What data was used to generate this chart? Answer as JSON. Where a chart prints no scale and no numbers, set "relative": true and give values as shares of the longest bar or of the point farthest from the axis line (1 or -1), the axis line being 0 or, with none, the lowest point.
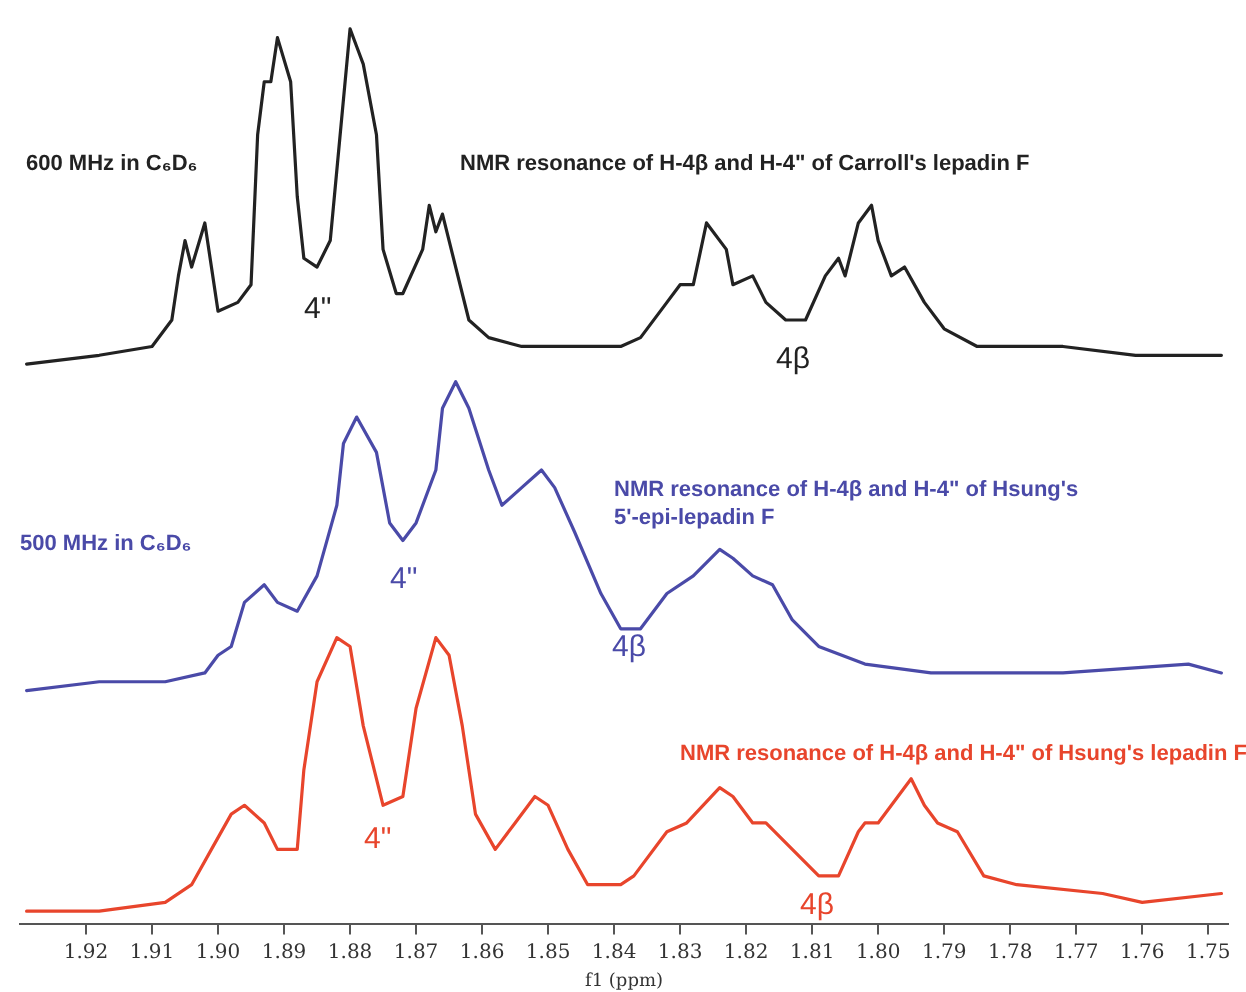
{
  "chart_data": {
    "type": "line",
    "relative": true,
    "xlabel": "f1 (ppm)",
    "legend": false,
    "grid": false,
    "marker": "none",
    "line_style": "solid",
    "xlim": [
      1.93,
      1.747
    ],
    "xticks": [
      1.92,
      1.91,
      {
        "value": 1.9,
        "label": "1.90"
      },
      1.89,
      1.88,
      1.87,
      1.86,
      1.85,
      1.84,
      1.83,
      1.82,
      1.81,
      {
        "value": 1.8,
        "label": "1.80"
      },
      1.79,
      1.78,
      1.77,
      1.76,
      1.75
    ],
    "series": [
      {
        "color": "#222222",
        "x": [
          1.929,
          1.918,
          1.91,
          1.907,
          1.906,
          1.905,
          1.904,
          1.902,
          1.901,
          1.9,
          1.897,
          1.895,
          1.894,
          1.893,
          1.892,
          1.891,
          1.889,
          1.888,
          1.887,
          1.885,
          1.883,
          1.882,
          1.88,
          1.879,
          1.878,
          1.876,
          1.875,
          1.873,
          1.872,
          1.869,
          1.868,
          1.867,
          1.866,
          1.864,
          1.862,
          1.859,
          1.854,
          1.846,
          1.839,
          1.836,
          1.832,
          1.83,
          1.828,
          1.826,
          1.823,
          1.822,
          1.819,
          1.817,
          1.814,
          1.811,
          1.808,
          1.806,
          1.805,
          1.803,
          1.801,
          1.8,
          1.798,
          1.796,
          1.793,
          1.79,
          1.785,
          1.772,
          1.761,
          1.748
        ],
        "values": [
          0.62,
          0.63,
          0.64,
          0.67,
          0.72,
          0.76,
          0.73,
          0.78,
          0.73,
          0.68,
          0.69,
          0.71,
          0.88,
          0.94,
          0.94,
          0.99,
          0.94,
          0.81,
          0.74,
          0.73,
          0.76,
          0.84,
          1.0,
          0.98,
          0.96,
          0.88,
          0.75,
          0.7,
          0.7,
          0.75,
          0.8,
          0.77,
          0.79,
          0.73,
          0.67,
          0.65,
          0.64,
          0.64,
          0.64,
          0.65,
          0.69,
          0.71,
          0.71,
          0.78,
          0.75,
          0.71,
          0.72,
          0.69,
          0.67,
          0.67,
          0.72,
          0.74,
          0.72,
          0.78,
          0.8,
          0.76,
          0.72,
          0.73,
          0.69,
          0.66,
          0.64,
          0.64,
          0.63,
          0.63
        ]
      },
      {
        "color": "#4a4aa8",
        "x": [
          1.929,
          1.918,
          1.908,
          1.902,
          1.9,
          1.898,
          1.896,
          1.893,
          1.891,
          1.888,
          1.885,
          1.882,
          1.881,
          1.879,
          1.876,
          1.874,
          1.872,
          1.87,
          1.867,
          1.866,
          1.864,
          1.862,
          1.859,
          1.857,
          1.854,
          1.851,
          1.849,
          1.846,
          1.842,
          1.839,
          1.836,
          1.832,
          1.828,
          1.824,
          1.822,
          1.819,
          1.816,
          1.813,
          1.809,
          1.802,
          1.792,
          1.772,
          1.753,
          1.748
        ],
        "values": [
          0.25,
          0.26,
          0.26,
          0.27,
          0.29,
          0.3,
          0.35,
          0.37,
          0.35,
          0.34,
          0.38,
          0.46,
          0.53,
          0.56,
          0.52,
          0.44,
          0.42,
          0.44,
          0.5,
          0.57,
          0.6,
          0.57,
          0.5,
          0.46,
          0.48,
          0.5,
          0.48,
          0.43,
          0.36,
          0.32,
          0.32,
          0.36,
          0.38,
          0.41,
          0.4,
          0.38,
          0.37,
          0.33,
          0.3,
          0.28,
          0.27,
          0.27,
          0.28,
          0.27
        ]
      },
      {
        "color": "#e8452c",
        "x": [
          1.929,
          1.918,
          1.908,
          1.904,
          1.901,
          1.898,
          1.896,
          1.893,
          1.891,
          1.888,
          1.887,
          1.885,
          1.882,
          1.88,
          1.878,
          1.875,
          1.872,
          1.87,
          1.867,
          1.865,
          1.863,
          1.861,
          1.858,
          1.855,
          1.852,
          1.85,
          1.847,
          1.844,
          1.839,
          1.837,
          1.832,
          1.829,
          1.824,
          1.822,
          1.819,
          1.817,
          1.813,
          1.809,
          1.806,
          1.803,
          1.802,
          1.8,
          1.795,
          1.793,
          1.791,
          1.788,
          1.784,
          1.779,
          1.766,
          1.76,
          1.748
        ],
        "values": [
          0,
          0,
          0.01,
          0.03,
          0.07,
          0.11,
          0.12,
          0.1,
          0.07,
          0.07,
          0.16,
          0.26,
          0.31,
          0.3,
          0.21,
          0.12,
          0.13,
          0.23,
          0.31,
          0.29,
          0.21,
          0.11,
          0.07,
          0.1,
          0.13,
          0.12,
          0.07,
          0.03,
          0.03,
          0.04,
          0.09,
          0.1,
          0.14,
          0.13,
          0.1,
          0.1,
          0.07,
          0.04,
          0.04,
          0.09,
          0.1,
          0.1,
          0.15,
          0.12,
          0.1,
          0.09,
          0.04,
          0.03,
          0.02,
          0.01,
          0.02
        ]
      }
    ],
    "annotations": [
      "600 MHz in C₆D₆",
      "NMR resonance of H-4β and H-4\" of Carroll's lepadin F",
      "4\"",
      "4β",
      "500 MHz in C₆D₆",
      "NMR resonance of H-4β and H-4\" of Hsung's\n5'-epi-lepadin F",
      "4\"",
      "4β",
      "NMR resonance of H-4β and H-4\" of Hsung's lepadin F",
      "4\"",
      "4β"
    ]
  }
}
